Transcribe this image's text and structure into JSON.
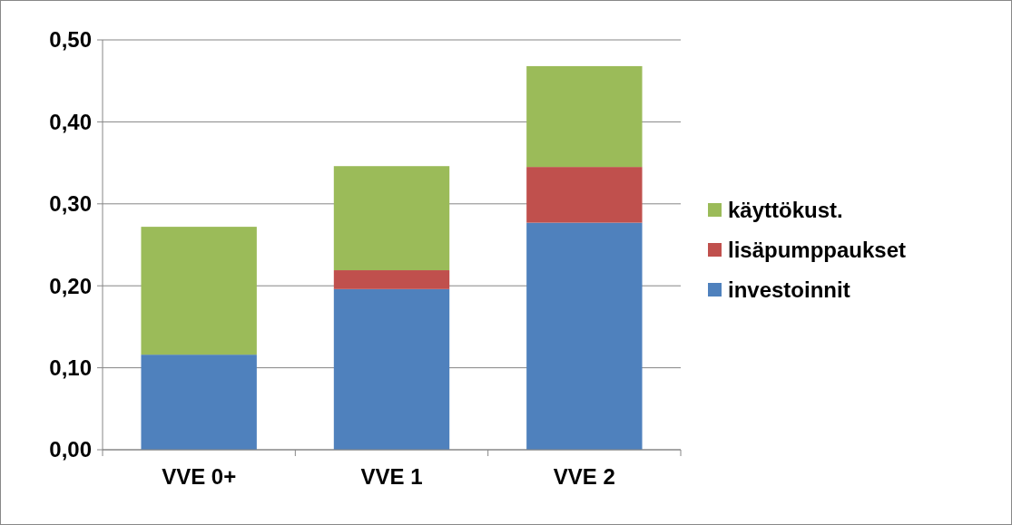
{
  "chart_data": {
    "type": "bar",
    "stacked": true,
    "categories": [
      "VVE 0+",
      "VVE 1",
      "VVE 2"
    ],
    "series": [
      {
        "name": "investoinnit",
        "color": "#4f81bd",
        "values": [
          0.116,
          0.196,
          0.277
        ]
      },
      {
        "name": "lisäpumppaukset",
        "color": "#c0504d",
        "values": [
          0,
          0.023,
          0.068
        ]
      },
      {
        "name": "käyttökust.",
        "color": "#9bbb59",
        "values": [
          0.156,
          0.127,
          0.123
        ]
      }
    ],
    "ylim": [
      0,
      0.5
    ],
    "yticks": [
      {
        "value": 0,
        "label": "0,00"
      },
      {
        "value": 0.1,
        "label": "0,10"
      },
      {
        "value": 0.2,
        "label": "0,20"
      },
      {
        "value": 0.3,
        "label": "0,30"
      },
      {
        "value": 0.4,
        "label": "0,40"
      },
      {
        "value": 0.5,
        "label": "0,50"
      }
    ],
    "grid": "y",
    "legend": "right"
  }
}
